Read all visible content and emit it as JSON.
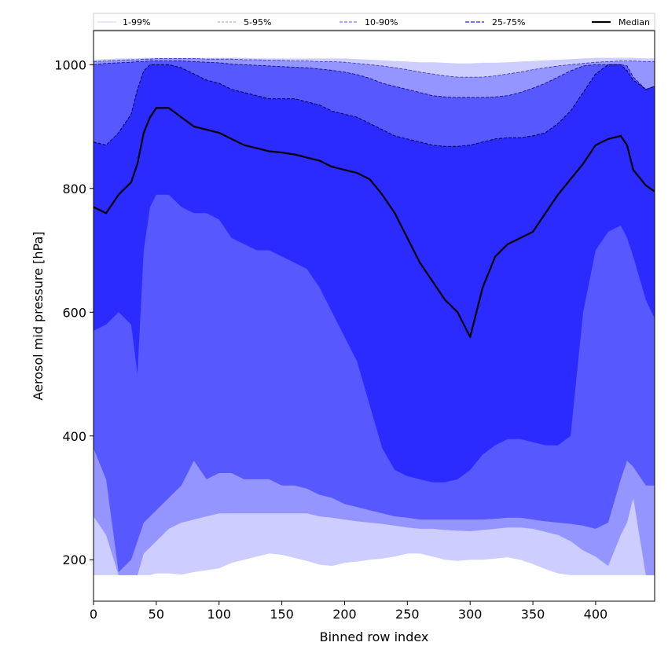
{
  "chart_data": {
    "type": "area",
    "xlabel": "Binned row index",
    "ylabel": "Aerosol mid pressure [hPa]",
    "xlim": [
      0,
      447
    ],
    "ylim": [
      133,
      1055
    ],
    "xticks": [
      0,
      50,
      100,
      150,
      200,
      250,
      300,
      350,
      400
    ],
    "yticks": [
      200,
      400,
      600,
      800,
      1000
    ],
    "grid": false,
    "legend_position": "top",
    "colors": {
      "band_1_99": "#cdcdff",
      "band_5_95": "#9595ff",
      "band_10_90": "#5858ff",
      "band_25_75": "#2b2bff",
      "median": "#000000",
      "axis": "#000000"
    },
    "legend": [
      "1-99%",
      "5-95%",
      "10-90%",
      "25-75%",
      "Median"
    ],
    "x": [
      0,
      10,
      20,
      30,
      35,
      40,
      45,
      50,
      60,
      70,
      80,
      90,
      100,
      110,
      120,
      130,
      140,
      150,
      160,
      170,
      180,
      190,
      200,
      210,
      220,
      230,
      240,
      250,
      260,
      270,
      280,
      290,
      300,
      310,
      320,
      330,
      340,
      350,
      360,
      370,
      380,
      390,
      400,
      410,
      420,
      425,
      430,
      440,
      447
    ],
    "series": [
      {
        "name": "1-99%",
        "lower": [
          175,
          175,
          175,
          175,
          175,
          175,
          175,
          178,
          178,
          176,
          180,
          183,
          186,
          195,
          200,
          205,
          210,
          208,
          203,
          198,
          192,
          190,
          195,
          197,
          200,
          202,
          205,
          210,
          210,
          205,
          200,
          198,
          200,
          200,
          202,
          204,
          200,
          193,
          185,
          178,
          175,
          175,
          175,
          175,
          175,
          175,
          175,
          175,
          175
        ],
        "upper": [
          1008,
          1009,
          1010,
          1010,
          1010,
          1011,
          1011,
          1011,
          1011,
          1011,
          1011,
          1011,
          1011,
          1011,
          1011,
          1010,
          1010,
          1010,
          1010,
          1010,
          1010,
          1010,
          1010,
          1009,
          1008,
          1007,
          1006,
          1005,
          1004,
          1004,
          1003,
          1002,
          1002,
          1003,
          1003,
          1004,
          1005,
          1006,
          1007,
          1008,
          1009,
          1010,
          1011,
          1011,
          1011,
          1011,
          1011,
          1010,
          1010
        ]
      },
      {
        "name": "5-95%",
        "lower": [
          270,
          240,
          175,
          175,
          175,
          210,
          220,
          230,
          250,
          260,
          265,
          270,
          275,
          275,
          275,
          275,
          275,
          275,
          275,
          275,
          270,
          268,
          265,
          262,
          260,
          258,
          255,
          252,
          250,
          250,
          248,
          247,
          246,
          248,
          250,
          252,
          252,
          250,
          245,
          240,
          230,
          215,
          205,
          190,
          240,
          260,
          300,
          175,
          175
        ],
        "upper": [
          1005,
          1006,
          1007,
          1008,
          1008,
          1009,
          1009,
          1010,
          1010,
          1010,
          1010,
          1009,
          1009,
          1009,
          1008,
          1008,
          1007,
          1007,
          1006,
          1006,
          1005,
          1005,
          1004,
          1002,
          1000,
          998,
          995,
          992,
          988,
          985,
          982,
          980,
          980,
          980,
          982,
          985,
          988,
          992,
          995,
          998,
          1000,
          1002,
          1004,
          1005,
          1006,
          1006,
          1006,
          1005,
          1005
        ]
      },
      {
        "name": "10-90%",
        "lower": [
          380,
          330,
          180,
          200,
          230,
          260,
          270,
          280,
          300,
          320,
          360,
          330,
          340,
          340,
          330,
          330,
          330,
          320,
          320,
          315,
          305,
          300,
          290,
          285,
          280,
          275,
          270,
          268,
          265,
          265,
          265,
          265,
          265,
          265,
          266,
          268,
          268,
          265,
          262,
          260,
          258,
          255,
          250,
          260,
          330,
          360,
          350,
          320,
          320
        ],
        "upper": [
          1000,
          1002,
          1003,
          1004,
          1005,
          1005,
          1006,
          1006,
          1006,
          1006,
          1005,
          1004,
          1003,
          1001,
          1000,
          999,
          998,
          997,
          996,
          995,
          993,
          991,
          988,
          984,
          978,
          970,
          965,
          960,
          955,
          950,
          948,
          947,
          947,
          947,
          948,
          950,
          955,
          962,
          970,
          980,
          990,
          998,
          1000,
          1000,
          1000,
          998,
          980,
          960,
          965
        ]
      },
      {
        "name": "25-75%",
        "lower": [
          570,
          580,
          600,
          580,
          500,
          700,
          770,
          790,
          790,
          770,
          760,
          760,
          750,
          720,
          710,
          700,
          700,
          690,
          680,
          670,
          640,
          600,
          560,
          520,
          450,
          380,
          345,
          335,
          330,
          325,
          325,
          330,
          345,
          370,
          385,
          395,
          395,
          390,
          385,
          385,
          400,
          600,
          700,
          730,
          740,
          720,
          690,
          620,
          590
        ],
        "upper": [
          875,
          870,
          890,
          920,
          960,
          990,
          1000,
          1000,
          1000,
          995,
          985,
          975,
          970,
          960,
          955,
          950,
          945,
          945,
          945,
          940,
          935,
          925,
          920,
          915,
          905,
          895,
          885,
          880,
          875,
          870,
          868,
          868,
          870,
          875,
          880,
          882,
          882,
          885,
          890,
          905,
          925,
          955,
          985,
          1000,
          1000,
          990,
          975,
          960,
          965
        ]
      },
      {
        "name": "Median",
        "values": [
          770,
          760,
          790,
          810,
          840,
          890,
          915,
          930,
          930,
          915,
          900,
          895,
          890,
          880,
          870,
          865,
          860,
          858,
          855,
          850,
          845,
          835,
          830,
          825,
          815,
          790,
          760,
          720,
          680,
          650,
          620,
          600,
          560,
          640,
          690,
          710,
          720,
          730,
          760,
          790,
          815,
          840,
          870,
          880,
          885,
          870,
          830,
          805,
          795
        ]
      }
    ]
  }
}
